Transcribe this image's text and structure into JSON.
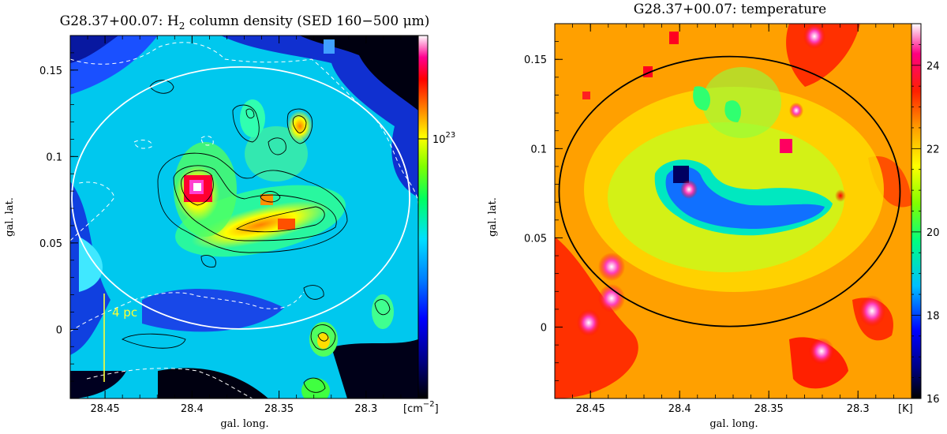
{
  "chart_data": [
    {
      "type": "heatmap",
      "title_prefix": "G28.37+00.07: H",
      "title_sub": "2",
      "title_suffix": " column density (SED 160−500 μm)",
      "xlabel": "gal. long.",
      "ylabel": "gal. lat.",
      "xlim": [
        28.47,
        28.27
      ],
      "ylim": [
        -0.04,
        0.17
      ],
      "x_ticks": [
        {
          "value": 28.45,
          "label": "28.45"
        },
        {
          "value": 28.4,
          "label": "28.4"
        },
        {
          "value": 28.35,
          "label": "28.35"
        },
        {
          "value": 28.3,
          "label": "28.3"
        }
      ],
      "y_ticks": [
        {
          "value": 0.15,
          "label": "0.15"
        },
        {
          "value": 0.1,
          "label": "0.1"
        },
        {
          "value": 0.05,
          "label": "0.05"
        },
        {
          "value": 0,
          "label": "0"
        }
      ],
      "colorbar": {
        "scale": "log",
        "tick_base": "10",
        "tick_exp": "23",
        "unit_open": "[cm",
        "unit_exp": "−2",
        "unit_close": "]"
      },
      "scale_bar_label": "4 pc",
      "ellipse": {
        "center_l": 28.372,
        "center_b": 0.076,
        "color": "#ffffff"
      },
      "colors": {
        "contour": "#000000",
        "dashed_contour": "#ffffff",
        "scale_bar": "#ffff33"
      }
    },
    {
      "type": "heatmap",
      "title": "G28.37+00.07: temperature",
      "xlabel": "gal. long.",
      "ylabel": "gal. lat.",
      "xlim": [
        28.47,
        28.27
      ],
      "ylim": [
        -0.04,
        0.17
      ],
      "x_ticks": [
        {
          "value": 28.45,
          "label": "28.45"
        },
        {
          "value": 28.4,
          "label": "28.4"
        },
        {
          "value": 28.35,
          "label": "28.35"
        },
        {
          "value": 28.3,
          "label": "28.3"
        }
      ],
      "y_ticks": [
        {
          "value": 0.15,
          "label": "0.15"
        },
        {
          "value": 0.1,
          "label": "0.1"
        },
        {
          "value": 0.05,
          "label": "0.05"
        },
        {
          "value": 0,
          "label": "0"
        }
      ],
      "colorbar": {
        "scale": "linear",
        "range": [
          16,
          25
        ],
        "ticks": [
          {
            "value": 16,
            "label": "16"
          },
          {
            "value": 18,
            "label": "18"
          },
          {
            "value": 20,
            "label": "20"
          },
          {
            "value": 22,
            "label": "22"
          },
          {
            "value": 24,
            "label": "24"
          }
        ],
        "unit": "[K]"
      },
      "ellipse": {
        "center_l": 28.372,
        "center_b": 0.076,
        "color": "#000000"
      }
    }
  ]
}
